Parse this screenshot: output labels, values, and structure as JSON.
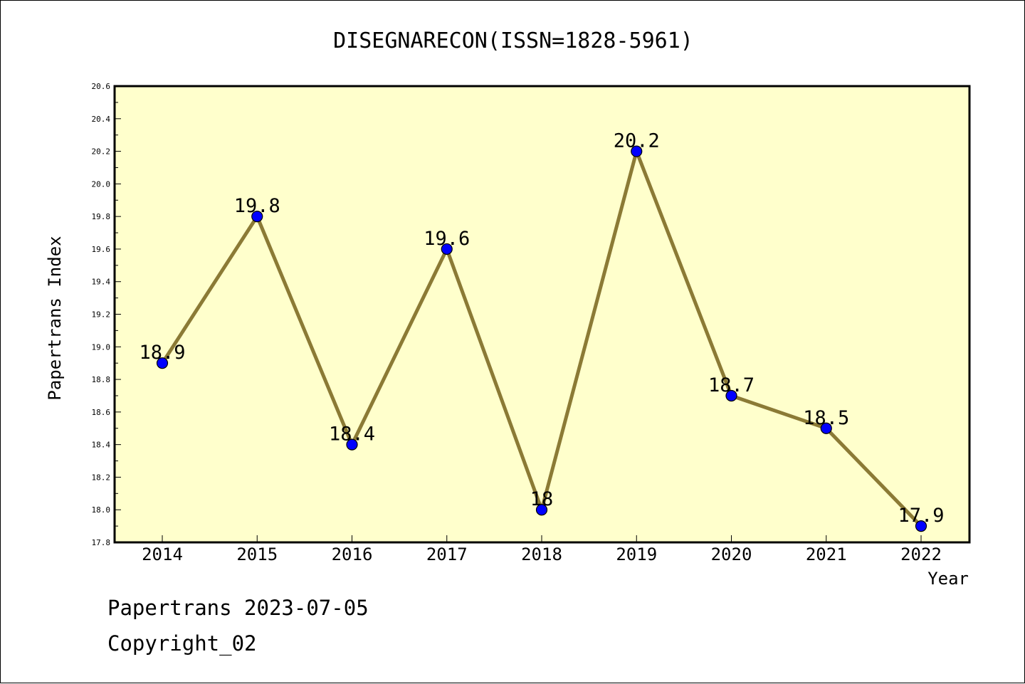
{
  "chart_data": {
    "type": "line",
    "title": "DISEGNARECON(ISSN=1828-5961)",
    "xlabel": "Year",
    "ylabel": "Papertrans Index",
    "categories": [
      "2014",
      "2015",
      "2016",
      "2017",
      "2018",
      "2019",
      "2020",
      "2021",
      "2022"
    ],
    "series": [
      {
        "values": [
          18.9,
          19.8,
          18.4,
          19.6,
          18.0,
          20.2,
          18.7,
          18.5,
          17.9
        ]
      }
    ],
    "data_labels": [
      "18.9",
      "19.8",
      "18.4",
      "19.6",
      "18",
      "20.2",
      "18.7",
      "18.5",
      "17.9"
    ],
    "ylim": [
      17.8,
      20.6
    ],
    "yticks": [
      "17.8",
      "18.0",
      "18.2",
      "18.4",
      "18.6",
      "18.8",
      "19.0",
      "19.2",
      "19.4",
      "19.6",
      "19.8",
      "20.0",
      "20.2",
      "20.4",
      "20.6"
    ],
    "grid": false,
    "colors": {
      "plot_background": "#ffffcc",
      "line": "#8b7a35",
      "marker": "#0000ff",
      "marker_edge": "#000000"
    }
  },
  "footer": {
    "line1": "Papertrans 2023-07-05",
    "line2": "Copyright_02"
  }
}
